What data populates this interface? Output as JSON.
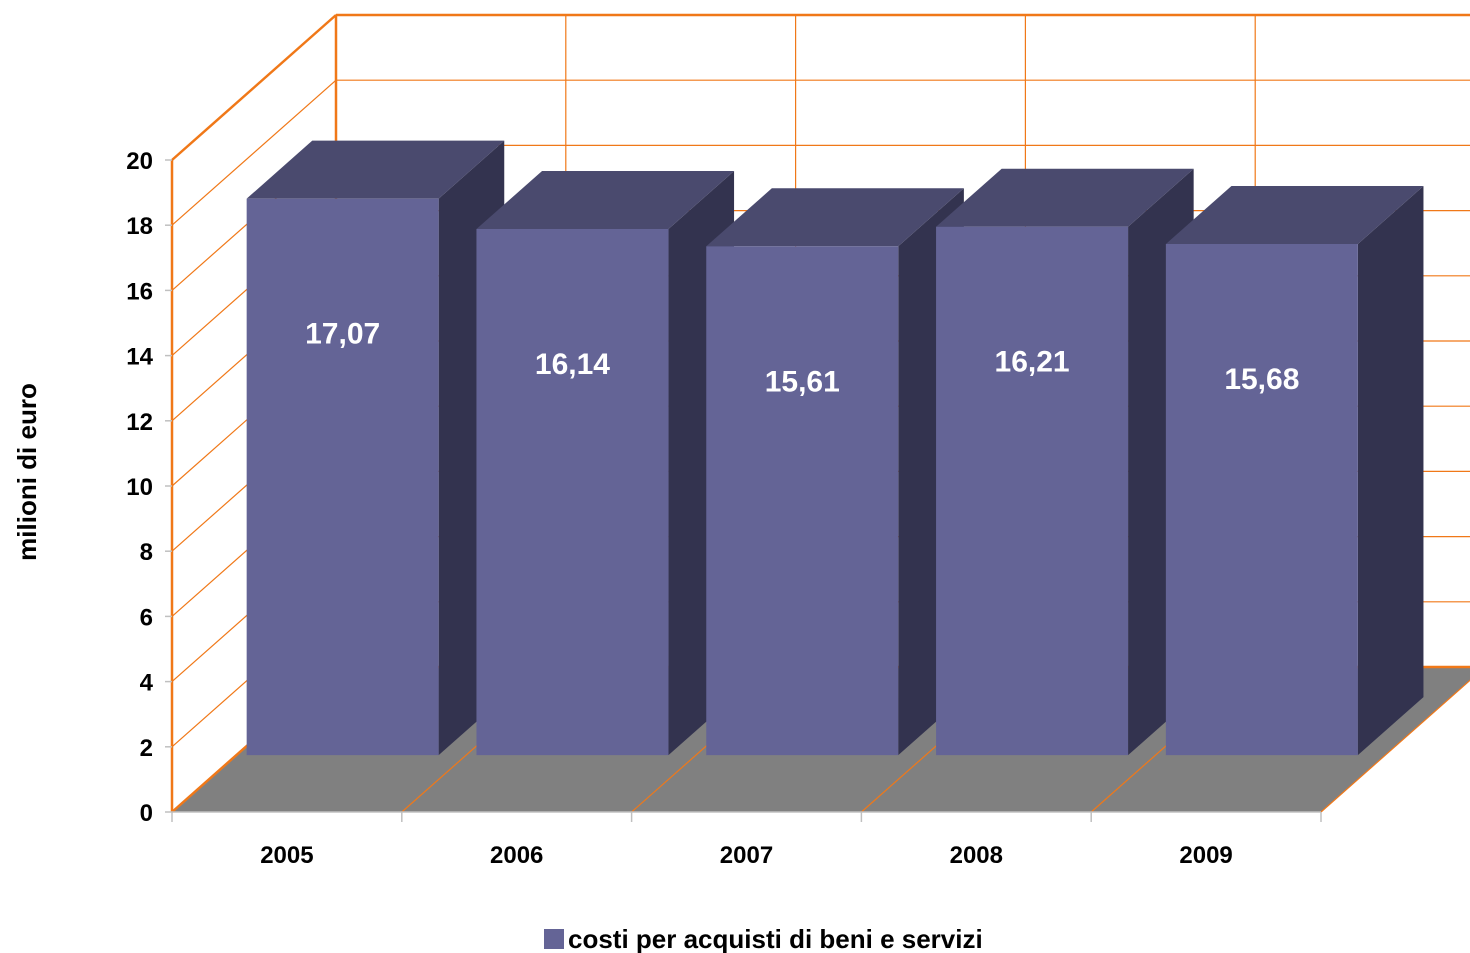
{
  "chart_data": {
    "type": "bar",
    "categories": [
      "2005",
      "2006",
      "2007",
      "2008",
      "2009"
    ],
    "series": [
      {
        "name": "costi per acquisti di beni e servizi",
        "values": [
          17.07,
          16.14,
          15.61,
          16.21,
          15.68
        ],
        "labels": [
          "17,07",
          "16,14",
          "15,61",
          "16,21",
          "15,68"
        ]
      }
    ],
    "ylabel": "milioni di euro",
    "xlabel": "",
    "ylim": [
      0,
      20
    ],
    "yticks": [
      "0",
      "2",
      "4",
      "6",
      "8",
      "10",
      "12",
      "14",
      "16",
      "18",
      "20"
    ],
    "grid": true,
    "legend_position": "bottom",
    "three_d": true,
    "colors": {
      "bar_front": "#646496",
      "bar_top": "#4a4a6e",
      "bar_side": "#33334f",
      "grid": "#f07818",
      "floor": "#808080",
      "label": "#ffffff"
    }
  }
}
